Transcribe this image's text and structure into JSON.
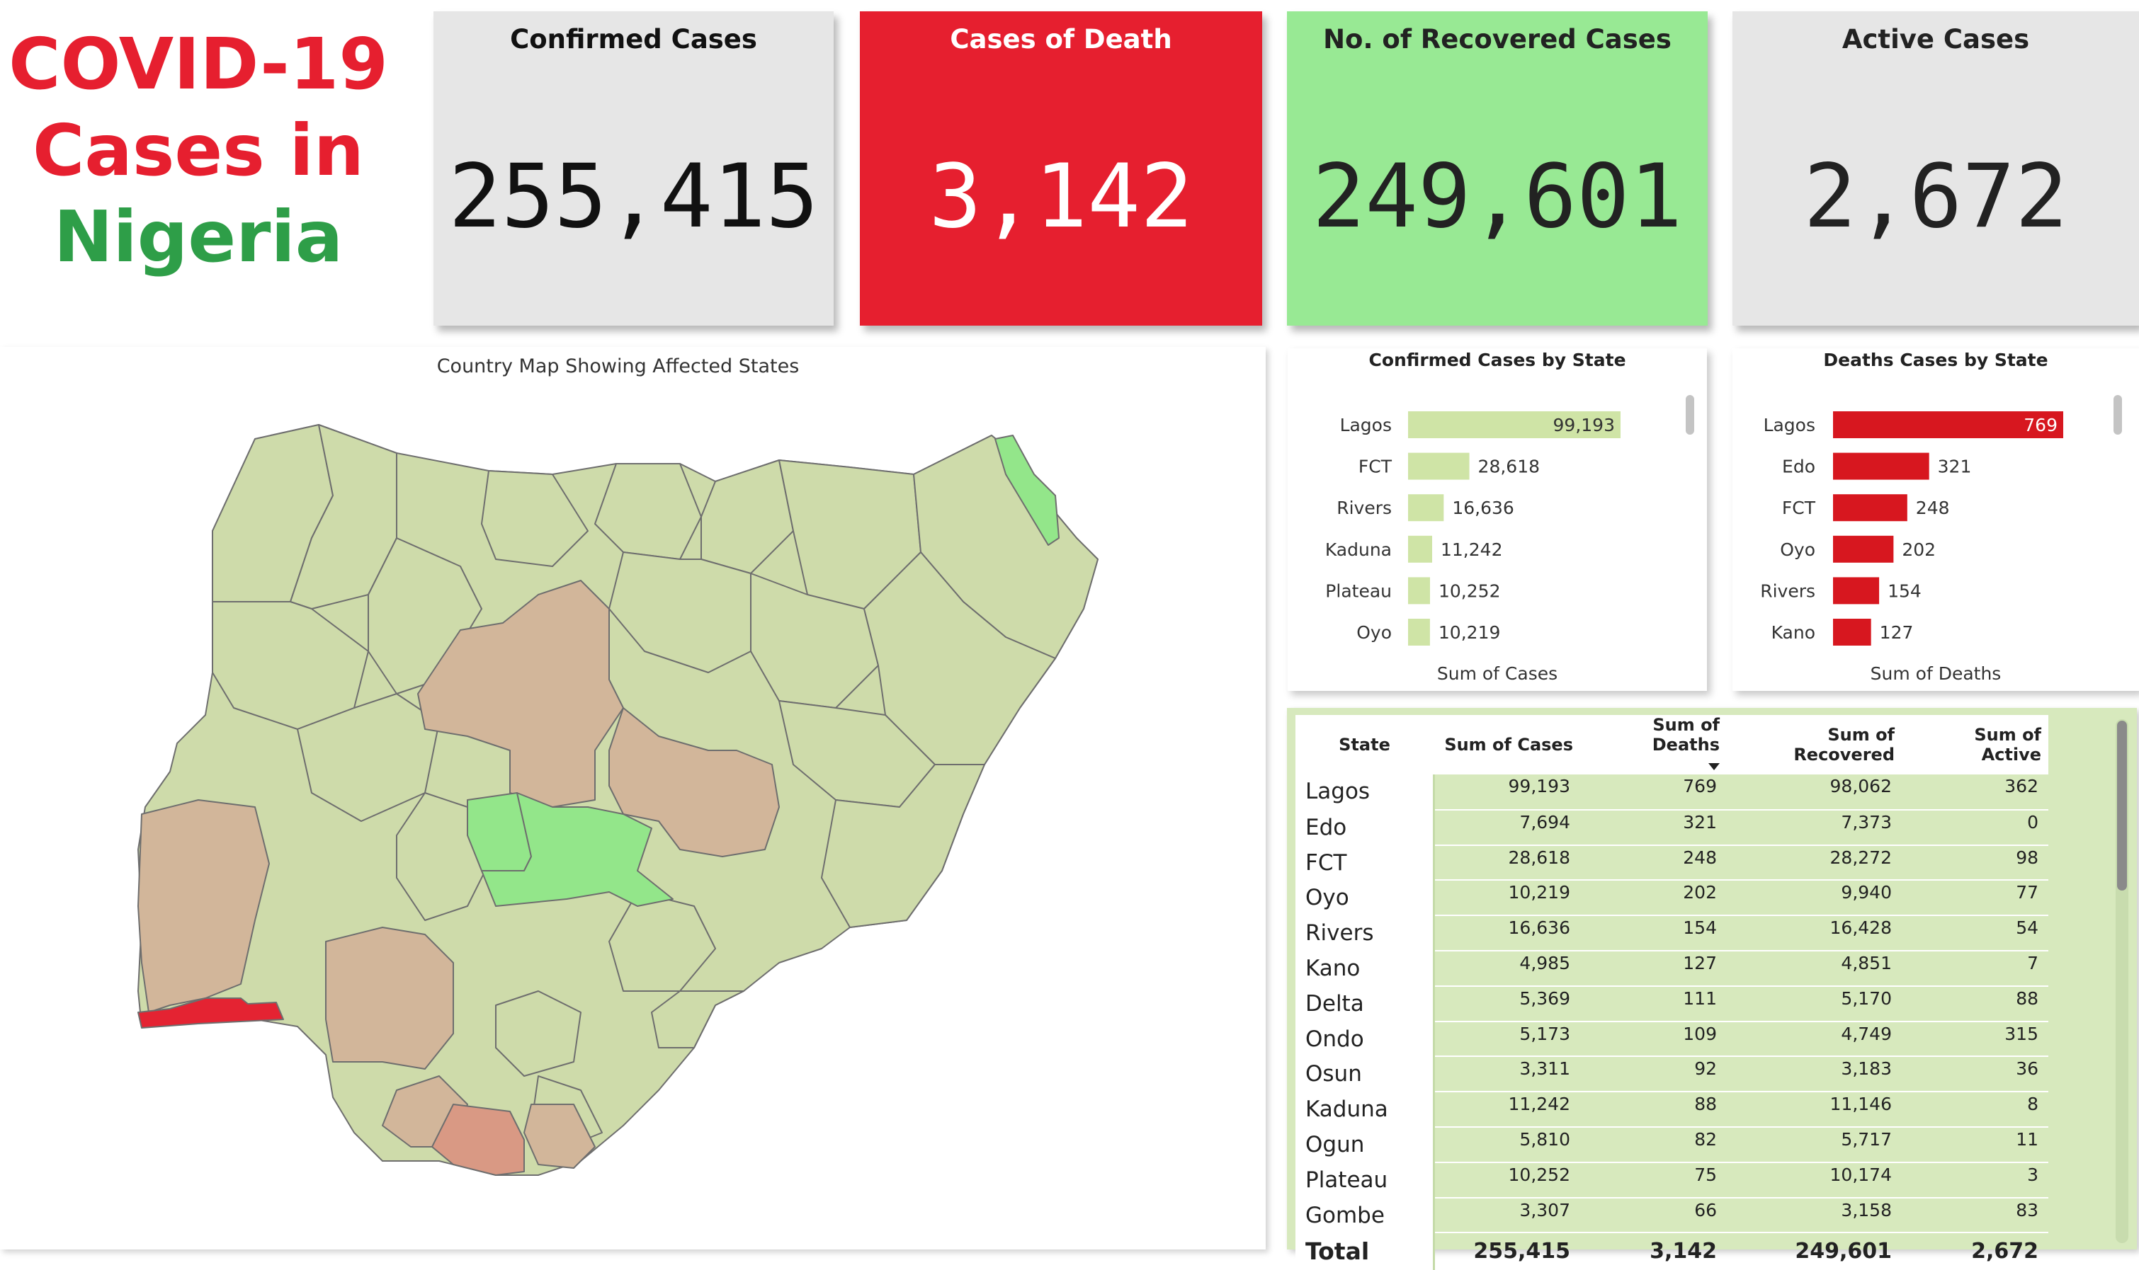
{
  "title": {
    "line1": "COVID-19",
    "line2": "Cases in",
    "line3": "Nigeria"
  },
  "kpis": [
    {
      "id": "confirmed",
      "label": "Confirmed Cases",
      "value": "255,415"
    },
    {
      "id": "death",
      "label": "Cases of Death",
      "value": "3,142"
    },
    {
      "id": "recovered",
      "label": "No. of Recovered Cases",
      "value": "249,601"
    },
    {
      "id": "active",
      "label": "Active Cases",
      "value": "2,672"
    }
  ],
  "colors": {
    "red": "#e61f2f",
    "green": "#2e9e48",
    "recovered_green": "#98e994",
    "card_gray": "#e6e6e6",
    "confirmed_bar": "#cfe4a6",
    "death_bar": "#d7171f",
    "map_default": "#cedbaa",
    "map_brown": "#d2b69a",
    "map_green": "#93e68a",
    "map_red": "#e42332",
    "map_salmon": "#d99984"
  },
  "map": {
    "title": "Country Map Showing Affected States"
  },
  "chart_data": [
    {
      "type": "bar",
      "orientation": "horizontal",
      "title": "Confirmed Cases by State",
      "xlabel": "Sum of Cases",
      "categories": [
        "Lagos",
        "FCT",
        "Rivers",
        "Kaduna",
        "Plateau",
        "Oyo"
      ],
      "values": [
        99193,
        28618,
        16636,
        11242,
        10252,
        10219
      ],
      "labels": [
        "99,193",
        "28,618",
        "16,636",
        "11,242",
        "10,252",
        "10,219"
      ]
    },
    {
      "type": "bar",
      "orientation": "horizontal",
      "title": "Deaths Cases by State",
      "xlabel": "Sum of Deaths",
      "categories": [
        "Lagos",
        "Edo",
        "FCT",
        "Oyo",
        "Rivers",
        "Kano"
      ],
      "values": [
        769,
        321,
        248,
        202,
        154,
        127
      ],
      "labels": [
        "769",
        "321",
        "248",
        "202",
        "154",
        "127"
      ]
    }
  ],
  "table": {
    "headers": [
      "State",
      "Sum of Cases",
      "Sum of Deaths",
      "Sum of Recovered",
      "Sum of Active"
    ],
    "rows": [
      [
        "Lagos",
        "99,193",
        "769",
        "98,062",
        "362"
      ],
      [
        "Edo",
        "7,694",
        "321",
        "7,373",
        "0"
      ],
      [
        "FCT",
        "28,618",
        "248",
        "28,272",
        "98"
      ],
      [
        "Oyo",
        "10,219",
        "202",
        "9,940",
        "77"
      ],
      [
        "Rivers",
        "16,636",
        "154",
        "16,428",
        "54"
      ],
      [
        "Kano",
        "4,985",
        "127",
        "4,851",
        "7"
      ],
      [
        "Delta",
        "5,369",
        "111",
        "5,170",
        "88"
      ],
      [
        "Ondo",
        "5,173",
        "109",
        "4,749",
        "315"
      ],
      [
        "Osun",
        "3,311",
        "92",
        "3,183",
        "36"
      ],
      [
        "Kaduna",
        "11,242",
        "88",
        "11,146",
        "8"
      ],
      [
        "Ogun",
        "5,810",
        "82",
        "5,717",
        "11"
      ],
      [
        "Plateau",
        "10,252",
        "75",
        "10,174",
        "3"
      ],
      [
        "Gombe",
        "3,307",
        "66",
        "3,158",
        "83"
      ]
    ],
    "total": [
      "Total",
      "255,415",
      "3,142",
      "249,601",
      "2,672"
    ]
  }
}
